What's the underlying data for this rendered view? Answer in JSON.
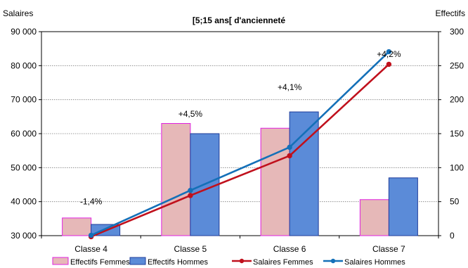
{
  "chart_data": {
    "type": "bar",
    "title": "[5;15 ans[ d'ancienneté",
    "ylabel": "Salaires",
    "y2label": "Effectifs",
    "categories": [
      "Classe 4",
      "Classe 5",
      "Classe 6",
      "Classe 7"
    ],
    "ylim": [
      30000,
      90000
    ],
    "y_ticks": [
      "30 000",
      "40 000",
      "50 000",
      "60 000",
      "70 000",
      "80 000",
      "90 000"
    ],
    "y2lim": [
      0,
      300
    ],
    "y2_ticks": [
      "0",
      "50",
      "100",
      "150",
      "200",
      "250",
      "300"
    ],
    "bar_series": [
      {
        "name": "Effectifs Femmes",
        "axis": "right",
        "values": [
          26,
          165,
          158,
          53
        ],
        "fill": "#e6b8b8",
        "stroke": "#e020e0"
      },
      {
        "name": "Effectifs Hommes",
        "axis": "left",
        "values": [
          33300,
          60000,
          66400,
          47000
        ],
        "fill": "#5b8bd8",
        "stroke": "#1f3c9a"
      }
    ],
    "line_series": [
      {
        "name": "Salaires Femmes",
        "axis": "left",
        "values": [
          29700,
          41800,
          53500,
          80400
        ],
        "color": "#c0101c"
      },
      {
        "name": "Salaires Hommes",
        "axis": "left",
        "values": [
          30100,
          43300,
          56000,
          84100
        ],
        "color": "#1470b8"
      }
    ],
    "annotations": [
      {
        "text": "-1,4%",
        "category": "Classe 4",
        "y": 40200
      },
      {
        "text": "+4,5%",
        "category": "Classe 5",
        "y": 66000
      },
      {
        "text": "+4,1%",
        "category": "Classe 6",
        "y": 73900
      },
      {
        "text": "+4,2%",
        "category": "Classe 7",
        "y": 83600
      }
    ],
    "grid": true,
    "legend_position": "bottom"
  }
}
